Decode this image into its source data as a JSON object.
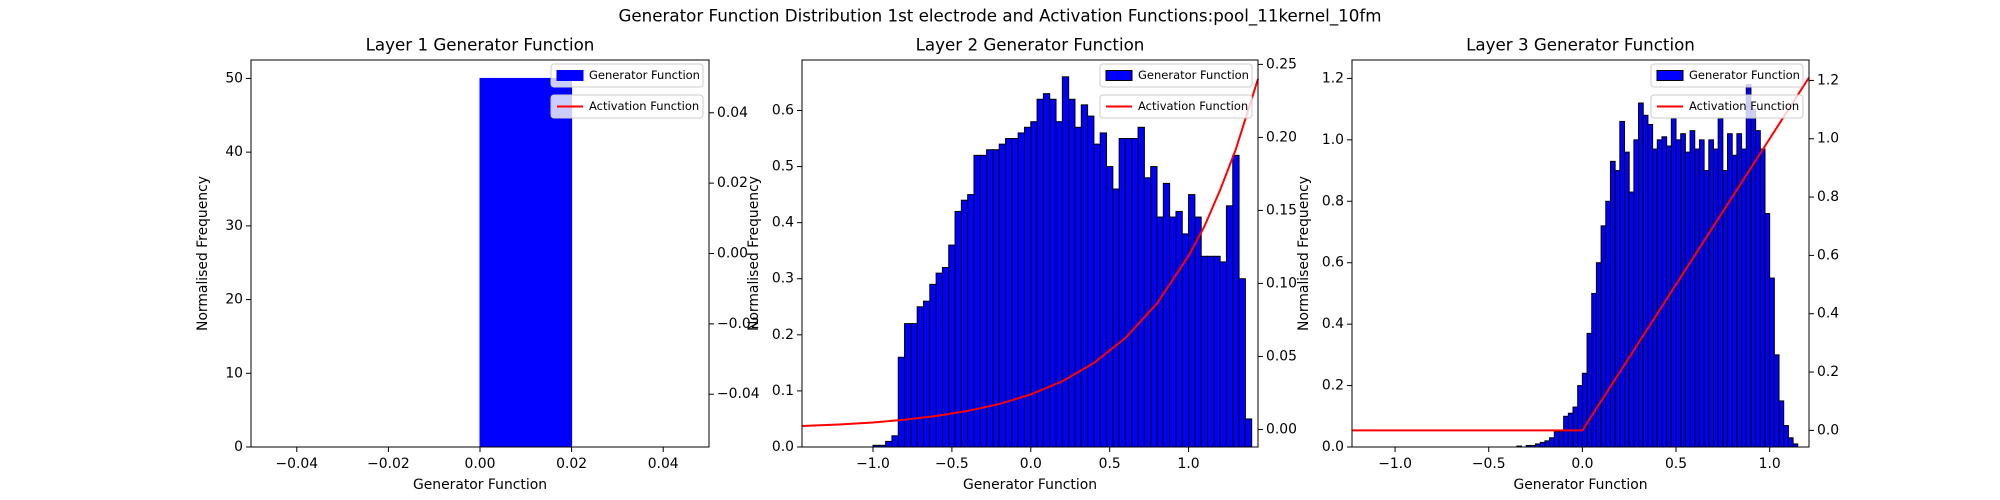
{
  "title": "Generator Function Distribution 1st electrode and Activation Functions:pool_11kernel_10fm",
  "chart_data": [
    {
      "type": "histogram",
      "title": "Layer 1 Generator Function",
      "xlabel": "Generator Function",
      "ylabel": "Normalised Frequency",
      "bins": [
        0,
        0.02
      ],
      "series": [
        {
          "name": "Generator Function",
          "color": "blue",
          "edgecolor": "blue",
          "values": [
            50
          ]
        },
        {
          "name": "Activation Function",
          "color": "red",
          "axis": "y2",
          "x": [
            0
          ],
          "values": [
            0
          ]
        }
      ],
      "xlim": [
        -0.05,
        0.05
      ],
      "xticks": [
        {
          "value": -0.04,
          "label": "−0.04"
        },
        {
          "value": -0.02,
          "label": "−0.02"
        },
        {
          "value": 0,
          "label": "0.00"
        },
        0.02,
        0.04
      ],
      "ylim": [
        0,
        52.5
      ],
      "yticks": [
        0,
        10,
        20,
        30,
        40,
        50
      ],
      "y2lim": [
        -0.055,
        0.055
      ],
      "y2ticks": [
        {
          "value": -0.04,
          "label": "−0.04"
        },
        {
          "value": -0.02,
          "label": "−0.02"
        },
        {
          "value": 0,
          "label": "0.00"
        },
        0.02,
        0.04
      ],
      "legend": "upper right"
    },
    {
      "type": "histogram",
      "title": "Layer 2 Generator Function",
      "xlabel": "Generator Function",
      "ylabel": "Normalised Frequency",
      "bins": [
        -1.0,
        -0.96,
        -0.92,
        -0.88,
        -0.84,
        -0.8,
        -0.76,
        -0.72,
        -0.68,
        -0.64,
        -0.6,
        -0.56,
        -0.52,
        -0.48,
        -0.44,
        -0.4,
        -0.36,
        -0.32,
        -0.28,
        -0.24,
        -0.2,
        -0.16,
        -0.12,
        -0.08,
        -0.04,
        0.0,
        0.04,
        0.08,
        0.12,
        0.16,
        0.2,
        0.24,
        0.28,
        0.32,
        0.36,
        0.4,
        0.44,
        0.48,
        0.52,
        0.56,
        0.6,
        0.64,
        0.68,
        0.72,
        0.76,
        0.8,
        0.84,
        0.88,
        0.92,
        0.96,
        1.0,
        1.04,
        1.08,
        1.12,
        1.16,
        1.2,
        1.24,
        1.28,
        1.32,
        1.36,
        1.4
      ],
      "series": [
        {
          "name": "Generator Function",
          "color": "blue",
          "edgecolor": "black",
          "values": [
            0.003,
            0.003,
            0.01,
            0.02,
            0.16,
            0.22,
            0.22,
            0.25,
            0.26,
            0.29,
            0.31,
            0.32,
            0.36,
            0.42,
            0.44,
            0.45,
            0.52,
            0.52,
            0.53,
            0.53,
            0.54,
            0.55,
            0.55,
            0.56,
            0.57,
            0.58,
            0.62,
            0.63,
            0.62,
            0.58,
            0.66,
            0.62,
            0.57,
            0.61,
            0.59,
            0.54,
            0.56,
            0.5,
            0.46,
            0.55,
            0.55,
            0.55,
            0.57,
            0.48,
            0.5,
            0.41,
            0.47,
            0.41,
            0.42,
            0.38,
            0.45,
            0.41,
            0.34,
            0.34,
            0.34,
            0.33,
            0.43,
            0.52,
            0.3,
            0.05
          ]
        },
        {
          "name": "Activation Function",
          "color": "red",
          "axis": "y2",
          "x": [
            -1.45,
            -1.2,
            -1.0,
            -0.8,
            -0.6,
            -0.4,
            -0.2,
            0,
            0.2,
            0.4,
            0.6,
            0.8,
            1.0,
            1.1,
            1.2,
            1.3,
            1.44
          ],
          "values": [
            0.0024,
            0.0035,
            0.0048,
            0.0067,
            0.0092,
            0.0127,
            0.0174,
            0.024,
            0.033,
            0.0455,
            0.0627,
            0.0863,
            0.1189,
            0.139,
            0.164,
            0.192,
            0.24
          ]
        }
      ],
      "xlim": [
        -1.45,
        1.44
      ],
      "xticks": [
        {
          "value": -1.0,
          "label": "−1.0"
        },
        {
          "value": -0.5,
          "label": "−0.5"
        },
        {
          "value": 0,
          "label": "0.0"
        },
        0.5,
        {
          "value": 1,
          "label": "1.0"
        }
      ],
      "ylim": [
        0,
        0.69
      ],
      "yticks": [
        {
          "value": 0,
          "label": "0.0"
        },
        0.1,
        0.2,
        0.3,
        0.4,
        0.5,
        0.6
      ],
      "y2lim": [
        -0.012,
        0.253
      ],
      "y2ticks": [
        {
          "value": 0,
          "label": "0.00"
        },
        0.05,
        {
          "value": 0.1,
          "label": "0.10"
        },
        0.15,
        {
          "value": 0.2,
          "label": "0.20"
        },
        0.25
      ],
      "legend": "upper right"
    },
    {
      "type": "histogram",
      "title": "Layer 3 Generator Function",
      "xlabel": "Generator Function",
      "ylabel": "Normalised Frequency",
      "bins": [
        -0.35,
        -0.325,
        -0.3,
        -0.275,
        -0.25,
        -0.225,
        -0.2,
        -0.175,
        -0.15,
        -0.125,
        -0.1,
        -0.075,
        -0.05,
        -0.025,
        0.0,
        0.025,
        0.05,
        0.075,
        0.1,
        0.125,
        0.15,
        0.175,
        0.2,
        0.225,
        0.25,
        0.275,
        0.3,
        0.325,
        0.35,
        0.375,
        0.4,
        0.425,
        0.45,
        0.475,
        0.5,
        0.525,
        0.55,
        0.575,
        0.6,
        0.625,
        0.65,
        0.675,
        0.7,
        0.725,
        0.75,
        0.775,
        0.8,
        0.825,
        0.85,
        0.875,
        0.9,
        0.925,
        0.95,
        0.975,
        1.0,
        1.025,
        1.05,
        1.075,
        1.1,
        1.125,
        1.15
      ],
      "series": [
        {
          "name": "Generator Function",
          "color": "blue",
          "edgecolor": "black",
          "values": [
            0.003,
            0.0,
            0.005,
            0.005,
            0.01,
            0.015,
            0.02,
            0.03,
            0.05,
            0.05,
            0.1,
            0.11,
            0.13,
            0.2,
            0.24,
            0.37,
            0.5,
            0.6,
            0.72,
            0.8,
            0.93,
            0.9,
            1.06,
            0.96,
            0.83,
            1.0,
            1.12,
            1.08,
            1.05,
            0.97,
            1.0,
            1.01,
            0.98,
            1.07,
            1.0,
            1.02,
            0.96,
            1.03,
            0.97,
            1.0,
            0.9,
            1.0,
            0.97,
            1.07,
            0.9,
            1.02,
            0.95,
            1.02,
            0.97,
            1.18,
            1.1,
            1.03,
            0.97,
            0.76,
            0.55,
            0.3,
            0.15,
            0.07,
            0.03,
            0.01
          ]
        },
        {
          "name": "Activation Function",
          "color": "red",
          "axis": "y2",
          "x": [
            -1.23,
            0,
            1.21
          ],
          "values": [
            0,
            0,
            1.21
          ]
        }
      ],
      "xlim": [
        -1.23,
        1.21
      ],
      "xticks": [
        {
          "value": -1.0,
          "label": "−1.0"
        },
        {
          "value": -0.5,
          "label": "−0.5"
        },
        {
          "value": 0,
          "label": "0.0"
        },
        0.5,
        {
          "value": 1,
          "label": "1.0"
        }
      ],
      "ylim": [
        0,
        1.26
      ],
      "yticks": [
        {
          "value": 0,
          "label": "0.0"
        },
        0.2,
        0.4,
        0.6,
        0.8,
        {
          "value": 1,
          "label": "1.0"
        },
        1.2
      ],
      "y2lim": [
        -0.057,
        1.27
      ],
      "y2ticks": [
        {
          "value": 0,
          "label": "0.0"
        },
        0.2,
        0.4,
        0.6,
        0.8,
        {
          "value": 1,
          "label": "1.0"
        },
        1.2
      ],
      "legend": "upper right"
    }
  ]
}
